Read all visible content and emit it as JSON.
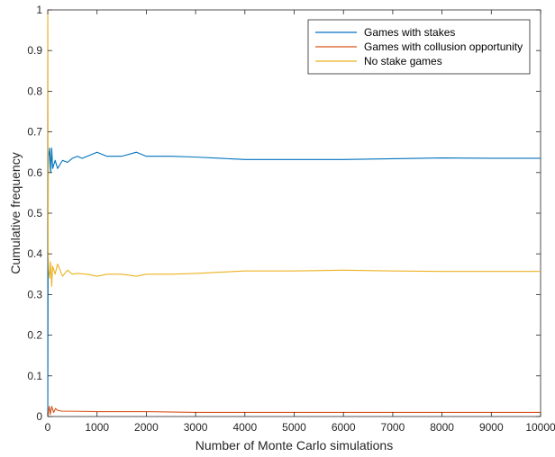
{
  "chart_data": {
    "type": "line",
    "title": "",
    "xlabel": "Number of Monte Carlo simulations",
    "ylabel": "Cumulative frequency",
    "xlim": [
      0,
      10000
    ],
    "ylim": [
      0,
      1
    ],
    "x_ticks": [
      0,
      1000,
      2000,
      3000,
      4000,
      5000,
      6000,
      7000,
      8000,
      9000,
      10000
    ],
    "y_ticks": [
      0,
      0.1,
      0.2,
      0.3,
      0.4,
      0.5,
      0.6,
      0.7,
      0.8,
      0.9,
      1
    ],
    "grid": false,
    "legend_position": "top-right",
    "series": [
      {
        "name": "Games with stakes",
        "color": "#0072BD",
        "points": [
          [
            1,
            0
          ],
          [
            10,
            0.6
          ],
          [
            20,
            0.64
          ],
          [
            40,
            0.66
          ],
          [
            60,
            0.6
          ],
          [
            80,
            0.66
          ],
          [
            100,
            0.61
          ],
          [
            150,
            0.63
          ],
          [
            200,
            0.61
          ],
          [
            250,
            0.62
          ],
          [
            300,
            0.63
          ],
          [
            400,
            0.625
          ],
          [
            500,
            0.635
          ],
          [
            600,
            0.64
          ],
          [
            700,
            0.635
          ],
          [
            800,
            0.64
          ],
          [
            1000,
            0.65
          ],
          [
            1200,
            0.64
          ],
          [
            1500,
            0.64
          ],
          [
            1800,
            0.65
          ],
          [
            2000,
            0.64
          ],
          [
            2500,
            0.64
          ],
          [
            3000,
            0.638
          ],
          [
            3500,
            0.635
          ],
          [
            4000,
            0.632
          ],
          [
            5000,
            0.632
          ],
          [
            6000,
            0.632
          ],
          [
            7000,
            0.634
          ],
          [
            8000,
            0.636
          ],
          [
            9000,
            0.635
          ],
          [
            10000,
            0.635
          ]
        ]
      },
      {
        "name": "Games with collusion opportunity",
        "color": "#D95319",
        "points": [
          [
            1,
            0
          ],
          [
            10,
            0.01
          ],
          [
            30,
            0.025
          ],
          [
            50,
            0.005
          ],
          [
            80,
            0.025
          ],
          [
            120,
            0.01
          ],
          [
            160,
            0.02
          ],
          [
            200,
            0.015
          ],
          [
            300,
            0.013
          ],
          [
            500,
            0.013
          ],
          [
            1000,
            0.012
          ],
          [
            2000,
            0.012
          ],
          [
            3000,
            0.01
          ],
          [
            5000,
            0.01
          ],
          [
            7000,
            0.01
          ],
          [
            10000,
            0.01
          ]
        ]
      },
      {
        "name": "No stake games",
        "color": "#EDB120",
        "points": [
          [
            1,
            1
          ],
          [
            10,
            0.4
          ],
          [
            20,
            0.36
          ],
          [
            40,
            0.34
          ],
          [
            60,
            0.38
          ],
          [
            80,
            0.32
          ],
          [
            100,
            0.37
          ],
          [
            150,
            0.35
          ],
          [
            200,
            0.375
          ],
          [
            250,
            0.36
          ],
          [
            300,
            0.345
          ],
          [
            400,
            0.36
          ],
          [
            500,
            0.35
          ],
          [
            600,
            0.352
          ],
          [
            800,
            0.35
          ],
          [
            1000,
            0.345
          ],
          [
            1200,
            0.35
          ],
          [
            1500,
            0.35
          ],
          [
            1800,
            0.345
          ],
          [
            2000,
            0.35
          ],
          [
            2500,
            0.35
          ],
          [
            3000,
            0.352
          ],
          [
            3500,
            0.355
          ],
          [
            4000,
            0.358
          ],
          [
            5000,
            0.358
          ],
          [
            6000,
            0.36
          ],
          [
            7000,
            0.358
          ],
          [
            8000,
            0.357
          ],
          [
            9000,
            0.357
          ],
          [
            10000,
            0.357
          ]
        ]
      }
    ]
  }
}
